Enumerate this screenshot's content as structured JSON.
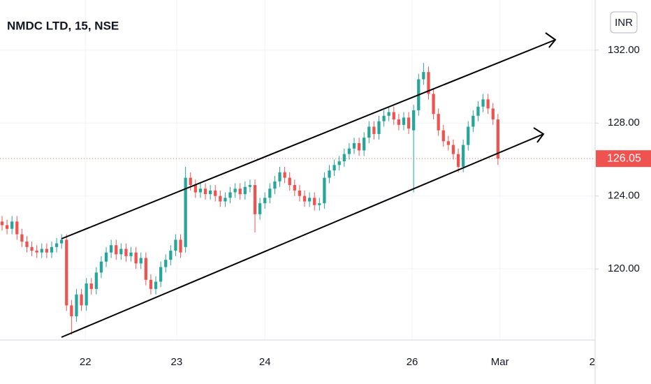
{
  "chart_data": {
    "type": "candlestick",
    "title": "NMDC LTD, 15, NSE",
    "currency": "INR",
    "up_color": "#26a69a",
    "down_color": "#ef5350",
    "grid": true,
    "last_price": 126.05,
    "xlim": [
      -0.42,
      119.6
    ],
    "xticks": [
      {
        "value": 16.8,
        "label": "22"
      },
      {
        "value": 35.2,
        "label": "23"
      },
      {
        "value": 53,
        "label": "24"
      },
      {
        "value": 82.7,
        "label": "26"
      },
      {
        "value": 100.4,
        "label": "Mar"
      },
      {
        "value": 119,
        "label": "2"
      }
    ],
    "ylim": [
      116.1,
      134.75
    ],
    "yticks": [
      {
        "value": 120,
        "label": "120.00"
      },
      {
        "value": 124,
        "label": "124.00"
      },
      {
        "value": 128,
        "label": "128.00"
      },
      {
        "value": 132,
        "label": "132.00"
      }
    ],
    "open": [
      122.6,
      122.4,
      122.2,
      122.6,
      121.9,
      121.5,
      121.2,
      121.0,
      120.9,
      121.1,
      120.9,
      121.2,
      121.4,
      121.6,
      118.0,
      117.4,
      118.6,
      118.0,
      119.2,
      118.9,
      119.8,
      120.4,
      120.9,
      121.3,
      120.8,
      121.1,
      120.7,
      120.9,
      120.3,
      120.6,
      119.4,
      118.9,
      119.3,
      120.1,
      120.5,
      121.0,
      121.6,
      121.2,
      125.0,
      124.6,
      124.2,
      124.4,
      124.1,
      124.3,
      124.0,
      123.7,
      123.9,
      124.2,
      124.4,
      124.1,
      124.5,
      124.6,
      123.0,
      123.6,
      123.9,
      124.4,
      124.8,
      125.3,
      125.0,
      124.6,
      124.3,
      124.0,
      123.7,
      123.9,
      123.5,
      123.6,
      125.0,
      125.4,
      125.7,
      125.9,
      126.3,
      126.6,
      126.9,
      126.5,
      127.2,
      127.8,
      127.4,
      128.1,
      128.4,
      128.6,
      128.2,
      127.9,
      128.3,
      127.6,
      128.7,
      130.4,
      130.8,
      129.6,
      128.5,
      127.6,
      127.0,
      126.8,
      126.3,
      125.6,
      126.8,
      127.8,
      128.4,
      128.9,
      129.3,
      128.8,
      128.2
    ],
    "high": [
      122.9,
      122.7,
      122.9,
      122.9,
      122.2,
      121.8,
      121.5,
      121.3,
      121.4,
      121.4,
      121.5,
      121.7,
      121.9,
      121.9,
      118.3,
      118.9,
      118.9,
      119.5,
      119.5,
      120.1,
      120.7,
      121.2,
      121.6,
      121.6,
      121.4,
      121.4,
      121.2,
      121.2,
      120.9,
      120.9,
      119.7,
      119.6,
      120.4,
      120.8,
      121.3,
      121.9,
      121.9,
      125.6,
      125.3,
      124.9,
      124.7,
      124.7,
      124.6,
      124.6,
      124.3,
      124.2,
      124.5,
      124.7,
      124.7,
      124.8,
      124.9,
      124.9,
      123.9,
      124.2,
      124.7,
      125.1,
      125.6,
      125.6,
      125.3,
      124.9,
      124.6,
      124.3,
      124.2,
      124.2,
      123.9,
      125.3,
      125.7,
      126.0,
      126.2,
      126.6,
      126.9,
      127.2,
      127.2,
      127.5,
      128.1,
      128.1,
      128.4,
      128.7,
      128.9,
      128.9,
      128.5,
      128.6,
      128.6,
      129.0,
      130.7,
      131.3,
      131.1,
      129.9,
      128.8,
      127.9,
      127.3,
      127.1,
      126.6,
      127.1,
      128.1,
      128.7,
      129.2,
      129.6,
      129.6,
      129.1,
      128.5
    ],
    "low": [
      122.1,
      121.9,
      121.9,
      121.6,
      121.2,
      120.9,
      120.7,
      120.6,
      120.6,
      120.6,
      120.6,
      120.9,
      121.1,
      117.7,
      116.4,
      117.1,
      117.7,
      117.7,
      118.6,
      118.6,
      119.5,
      120.1,
      120.6,
      120.5,
      120.5,
      120.4,
      120.4,
      120.0,
      120.0,
      119.1,
      118.6,
      118.6,
      119.0,
      119.8,
      120.2,
      120.7,
      120.6,
      120.9,
      124.3,
      123.9,
      123.9,
      123.8,
      123.8,
      123.7,
      123.4,
      123.4,
      123.6,
      123.9,
      123.8,
      123.8,
      124.2,
      122.0,
      122.7,
      123.3,
      123.6,
      124.1,
      124.5,
      124.7,
      124.3,
      124.0,
      123.7,
      123.4,
      123.4,
      123.2,
      123.2,
      123.3,
      124.7,
      125.1,
      125.4,
      125.6,
      126.0,
      126.3,
      126.2,
      126.2,
      126.9,
      127.1,
      127.1,
      127.8,
      128.1,
      127.9,
      127.6,
      127.6,
      127.4,
      124.2,
      128.4,
      130.1,
      129.3,
      128.2,
      127.3,
      126.7,
      126.5,
      126.0,
      125.3,
      125.3,
      126.5,
      127.5,
      128.1,
      128.6,
      128.5,
      127.9,
      125.7
    ],
    "close": [
      122.4,
      122.2,
      122.6,
      121.9,
      121.5,
      121.2,
      121.0,
      120.9,
      121.1,
      120.9,
      121.2,
      121.4,
      121.6,
      118.0,
      117.4,
      118.6,
      118.0,
      119.2,
      118.9,
      119.8,
      120.4,
      120.9,
      121.3,
      120.8,
      121.1,
      120.7,
      120.9,
      120.3,
      120.6,
      119.4,
      118.9,
      119.3,
      120.1,
      120.5,
      121.0,
      121.6,
      120.9,
      125.0,
      124.6,
      124.2,
      124.4,
      124.1,
      124.3,
      124.0,
      123.7,
      123.9,
      124.2,
      124.4,
      124.1,
      124.5,
      124.6,
      123.0,
      123.6,
      123.9,
      124.4,
      124.8,
      125.3,
      125.0,
      124.6,
      124.3,
      124.0,
      123.7,
      123.9,
      123.5,
      123.6,
      125.0,
      125.4,
      125.7,
      125.9,
      126.3,
      126.6,
      126.9,
      126.5,
      127.2,
      127.8,
      127.4,
      128.1,
      128.4,
      128.6,
      128.2,
      127.9,
      128.3,
      127.7,
      128.7,
      130.4,
      130.8,
      129.6,
      128.5,
      127.6,
      127.0,
      126.8,
      126.3,
      125.6,
      126.8,
      127.8,
      128.4,
      128.9,
      129.3,
      128.8,
      128.2,
      126.05
    ]
  }
}
